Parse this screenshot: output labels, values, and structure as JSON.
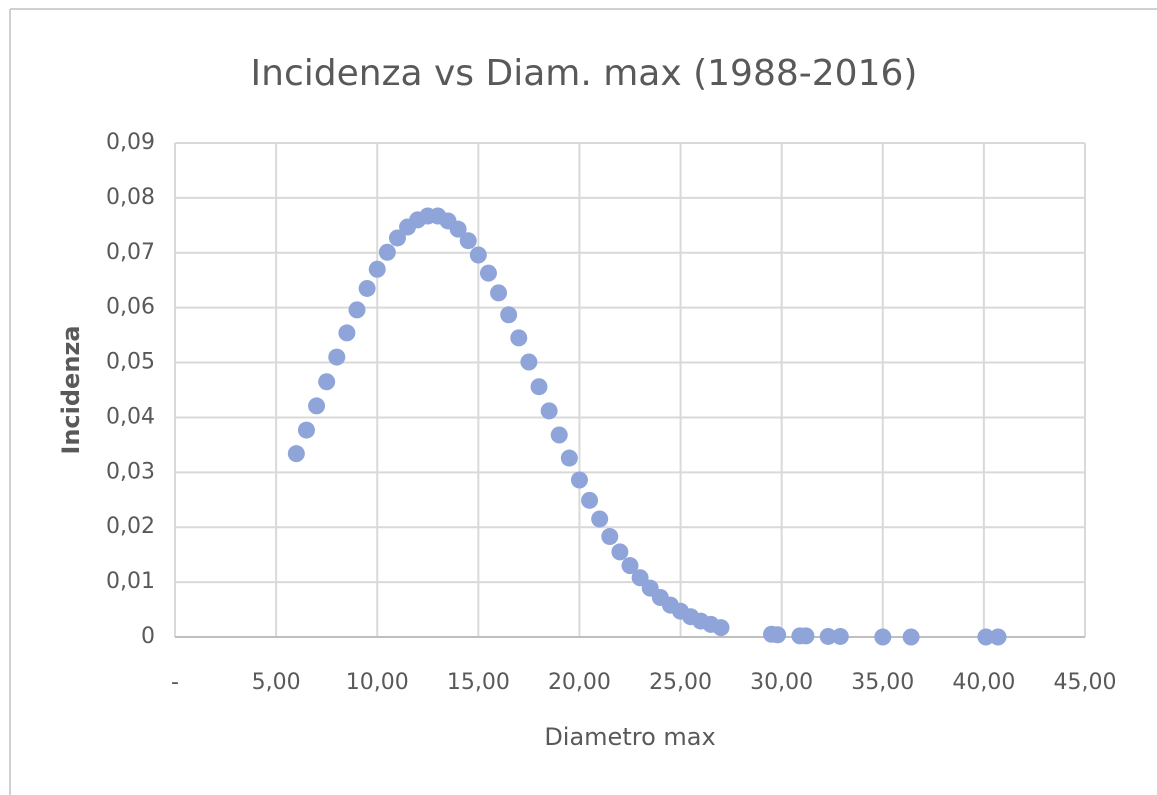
{
  "chart_data": {
    "type": "scatter",
    "title": "Incidenza vs Diam. max (1988-2016)",
    "x_label": "Diametro max",
    "y_label": "Incidenza",
    "color": "#8fa4d8",
    "grid": true,
    "xlim": [
      0,
      45
    ],
    "ylim": [
      0,
      0.09
    ],
    "xticks": [
      {
        "value": 0,
        "label": "-"
      },
      {
        "value": 5,
        "label": "5,00"
      },
      {
        "value": 10,
        "label": "10,00"
      },
      {
        "value": 15,
        "label": "15,00"
      },
      {
        "value": 20,
        "label": "20,00"
      },
      {
        "value": 25,
        "label": "25,00"
      },
      {
        "value": 30,
        "label": "30,00"
      },
      {
        "value": 35,
        "label": "35,00"
      },
      {
        "value": 40,
        "label": "40,00"
      },
      {
        "value": 45,
        "label": "45,00"
      }
    ],
    "yticks": [
      0,
      {
        "value": 0.01,
        "label": "0,01"
      },
      {
        "value": 0.02,
        "label": "0,02"
      },
      {
        "value": 0.03,
        "label": "0,03"
      },
      {
        "value": 0.04,
        "label": "0,04"
      },
      {
        "value": 0.05,
        "label": "0,05"
      },
      {
        "value": 0.06,
        "label": "0,06"
      },
      {
        "value": 0.07,
        "label": "0,07"
      },
      {
        "value": 0.08,
        "label": "0,08"
      },
      {
        "value": 0.09,
        "label": "0,09"
      }
    ],
    "x": [
      6,
      6.5,
      7,
      7.5,
      8,
      8.5,
      9,
      9.5,
      10,
      10.5,
      11,
      11.5,
      12,
      12.5,
      13,
      13.5,
      14,
      14.5,
      15,
      15.5,
      16,
      16.5,
      17,
      17.5,
      18,
      18.5,
      19,
      19.5,
      20,
      20.5,
      21,
      21.5,
      22,
      22.5,
      23,
      23.5,
      24,
      24.5,
      25,
      25.5,
      26,
      26.5,
      27,
      29.5,
      29.8,
      30.9,
      31.2,
      32.3,
      32.9,
      35,
      36.4,
      40.1,
      40.7
    ],
    "values": [
      0.0334,
      0.0377,
      0.0421,
      0.0465,
      0.051,
      0.0554,
      0.0596,
      0.0635,
      0.067,
      0.0701,
      0.0727,
      0.0747,
      0.076,
      0.0767,
      0.0767,
      0.0758,
      0.0743,
      0.0722,
      0.0696,
      0.0663,
      0.0627,
      0.0587,
      0.0545,
      0.0501,
      0.0456,
      0.0412,
      0.0368,
      0.0326,
      0.0286,
      0.0249,
      0.0215,
      0.0183,
      0.0155,
      0.013,
      0.0108,
      0.0089,
      0.0072,
      0.0058,
      0.0047,
      0.0037,
      0.0029,
      0.0023,
      0.0017,
      0.0005,
      0.0004,
      0.0002,
      0.0002,
      0.0001,
      0.0001,
      0,
      0,
      0,
      0
    ]
  }
}
